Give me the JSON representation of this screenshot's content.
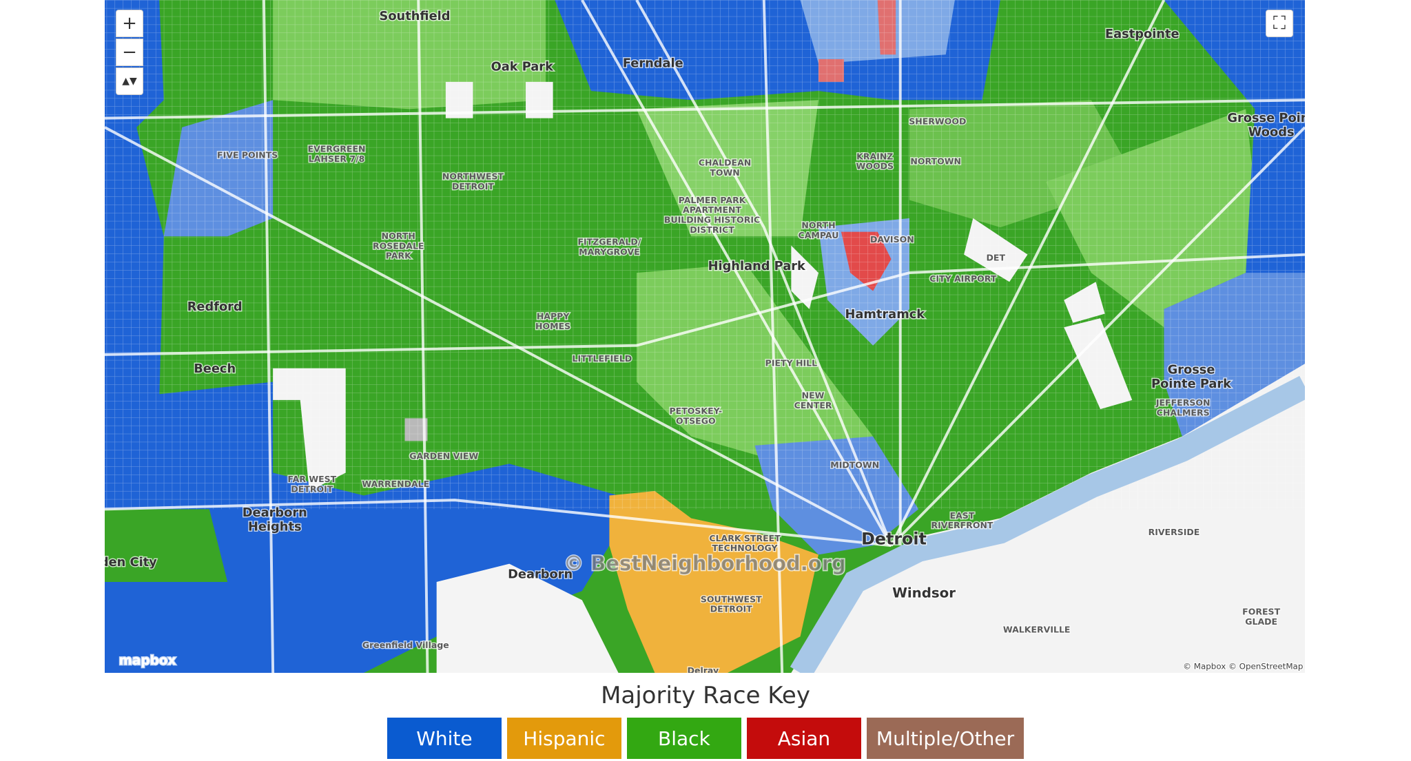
{
  "map": {
    "controls": {
      "zoom_in": "+",
      "zoom_out": "−",
      "reset": "▲▼",
      "fullscreen": "⛶"
    },
    "place_labels": [
      [
        "Southfield"
      ],
      [
        "Oak Park"
      ],
      [
        "Ferndale"
      ],
      [
        "Eastpointe"
      ],
      [
        "SHERWOOD"
      ],
      [
        "FIVE POINTS"
      ],
      [
        "EVERGREEN",
        "LAHSER 7/8"
      ],
      [
        "NORTHWEST",
        "DETROIT"
      ],
      [
        "CHALDEAN",
        "TOWN"
      ],
      [
        "KRAINZ",
        "WOODS"
      ],
      [
        "NORTOWN"
      ],
      [
        "Grosse Point",
        "Woods"
      ],
      [
        "PALMER PARK",
        "APARTMENT",
        "BUILDING HISTORIC",
        "DISTRICT"
      ],
      [
        "NORTH",
        "ROSEDALE",
        "PARK"
      ],
      [
        "FITZGERALD/",
        "MARYGROVE"
      ],
      [
        "NORTH",
        "CAMPAU"
      ],
      [
        "DAVISON"
      ],
      [
        "Highland Park"
      ],
      [
        "DET"
      ],
      [
        "CITY AIRPORT"
      ],
      [
        "Redford"
      ],
      [
        "Hamtramck"
      ],
      [
        "HAPPY",
        "HOMES"
      ],
      [
        "LITTLEFIELD"
      ],
      [
        "PIETY HILL"
      ],
      [
        "Beech"
      ],
      [
        "Grosse",
        "Pointe Park"
      ],
      [
        "JEFFERSON",
        "CHALMERS"
      ],
      [
        "NEW",
        "CENTER"
      ],
      [
        "PETOSKEY-",
        "OTSEGO"
      ],
      [
        "GARDEN VIEW"
      ],
      [
        "MIDTOWN"
      ],
      [
        "FAR WEST",
        "DETROIT"
      ],
      [
        "WARRENDALE"
      ],
      [
        "Dearborn",
        "Heights"
      ],
      [
        "EAST",
        "RIVERFRONT"
      ],
      [
        "CLARK STREET",
        "TECHNOLOGY"
      ],
      [
        "Detroit"
      ],
      [
        "RIVERSIDE"
      ],
      [
        "den City"
      ],
      [
        "Dearborn"
      ],
      [
        "SOUTHWEST",
        "DETROIT"
      ],
      [
        "Windsor"
      ],
      [
        "FOREST",
        "GLADE"
      ],
      [
        "WALKERVILLE"
      ],
      [
        "Greenfield Village"
      ],
      [
        "Delray"
      ]
    ],
    "watermark": "© BestNeighborhood.org",
    "logo": "mapbox",
    "attribution": "© Mapbox © OpenStreetMap"
  },
  "key": {
    "title": "Majority Race Key",
    "items": [
      {
        "label": "White",
        "color": "#0a5bd0"
      },
      {
        "label": "Hispanic",
        "color": "#e39a0c"
      },
      {
        "label": "Black",
        "color": "#33a812"
      },
      {
        "label": "Asian",
        "color": "#c40c0c"
      },
      {
        "label": "Multiple/Other",
        "color": "#9b6a56"
      }
    ]
  }
}
